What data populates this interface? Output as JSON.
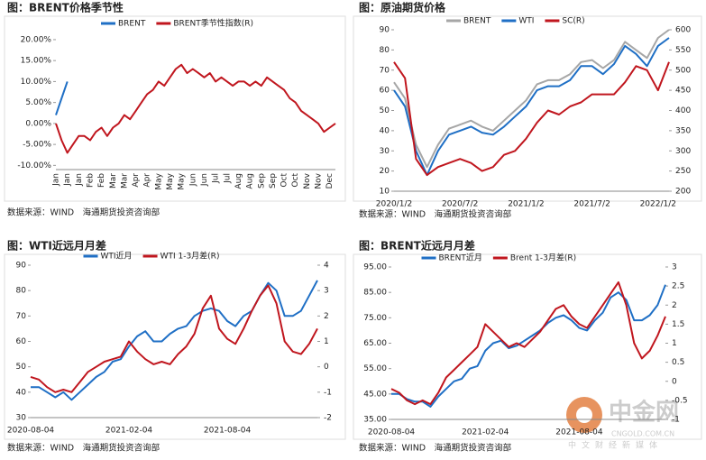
{
  "chart_data": [
    {
      "type": "line",
      "title": "图：BRENT价格季节性",
      "source": "数据来源：WIND　海通期货投资咨询部",
      "categories": [
        "Jan",
        null,
        "Jan",
        null,
        "Jan",
        null,
        "Feb",
        null,
        "Feb",
        null,
        "Mar",
        null,
        "Mar",
        null,
        "Apr",
        null,
        "Apr",
        null,
        "May",
        null,
        "May",
        null,
        "May",
        null,
        "Jun",
        null,
        "Jun",
        null,
        "Jul",
        null,
        "Jul",
        null,
        "Aug",
        null,
        "Aug",
        null,
        "Sep",
        null,
        "Sep",
        null,
        "Oct",
        null,
        "Oct",
        null,
        "Nov",
        null,
        "Nov",
        null,
        "Dec",
        null
      ],
      "series": [
        {
          "name": "BRENT",
          "color": "#1f6fc5",
          "values": [
            2,
            6,
            10,
            null,
            null,
            null,
            null,
            null,
            null,
            null,
            null,
            null,
            null,
            null,
            null,
            null,
            null,
            null,
            null,
            null,
            null,
            null,
            null,
            null,
            null,
            null,
            null,
            null,
            null,
            null,
            null,
            null,
            null,
            null,
            null,
            null,
            null,
            null,
            null,
            null,
            null,
            null,
            null,
            null,
            null,
            null,
            null,
            null,
            null,
            null
          ]
        },
        {
          "name": "BRENT季节性指数(R)",
          "color": "#c0161e",
          "values": [
            0,
            -4,
            -7,
            -5,
            -3,
            -3,
            -4,
            -2,
            -1,
            -3,
            -1,
            0,
            2,
            1,
            3,
            5,
            7,
            8,
            10,
            9,
            11,
            13,
            14,
            12,
            13,
            12,
            11,
            12,
            10,
            11,
            10,
            9,
            10,
            10,
            9,
            10,
            9,
            11,
            10,
            9,
            8,
            6,
            5,
            3,
            2,
            1,
            0,
            -2,
            -1,
            0
          ]
        }
      ],
      "ylim": [
        -11,
        23
      ],
      "yticks": [
        {
          "value": -10,
          "label": "-10.00%"
        },
        {
          "value": -5,
          "label": "-5.00%"
        },
        {
          "value": 0,
          "label": "0.00%"
        },
        {
          "value": 5,
          "label": "5.00%"
        },
        {
          "value": 10,
          "label": "10.00%"
        },
        {
          "value": 15,
          "label": "15.00%"
        },
        {
          "value": 20,
          "label": "20.00%"
        }
      ],
      "grid": false,
      "legend": "top"
    },
    {
      "type": "line",
      "title": "图：原油期货价格",
      "source": "数据来源：WIND　海通期货投资咨询部",
      "categories": [
        "2020/1/2",
        null,
        null,
        null,
        null,
        null,
        "2020/7/2",
        null,
        null,
        null,
        null,
        null,
        "2021/1/2",
        null,
        null,
        null,
        null,
        null,
        "2021/7/2",
        null,
        null,
        null,
        null,
        null,
        "2022/1/2",
        null
      ],
      "series": [
        {
          "name": "BRENT",
          "color": "#a6a6a6",
          "values": [
            64,
            56,
            33,
            22,
            33,
            41,
            43,
            45,
            42,
            40,
            45,
            50,
            55,
            63,
            65,
            65,
            68,
            74,
            75,
            71,
            75,
            84,
            80,
            76,
            86,
            90
          ]
        },
        {
          "name": "WTI",
          "color": "#1f6fc5",
          "values": [
            60,
            52,
            30,
            18,
            30,
            38,
            40,
            42,
            39,
            38,
            42,
            47,
            52,
            60,
            62,
            62,
            65,
            72,
            72,
            68,
            73,
            82,
            78,
            72,
            82,
            86
          ]
        },
        {
          "name": "SC(R)",
          "color": "#c0161e",
          "axis": "y2",
          "values": [
            520,
            480,
            280,
            240,
            260,
            270,
            280,
            270,
            250,
            260,
            290,
            300,
            330,
            370,
            400,
            390,
            410,
            420,
            440,
            440,
            440,
            470,
            510,
            500,
            450,
            520
          ]
        }
      ],
      "ylim": [
        10,
        90
      ],
      "yticks": [
        10,
        20,
        30,
        40,
        50,
        60,
        70,
        80,
        90
      ],
      "y2lim": [
        200,
        600
      ],
      "y2ticks": [
        200,
        250,
        300,
        350,
        400,
        450,
        500,
        550,
        600
      ],
      "grid": false,
      "legend": "top"
    },
    {
      "type": "line",
      "title": "图：WTI近远月月差",
      "source": "数据来源：WIND　海通期货投资咨询部",
      "categories": [
        "2020-08-04",
        null,
        null,
        null,
        null,
        null,
        null,
        null,
        null,
        null,
        null,
        null,
        "2021-02-04",
        null,
        null,
        null,
        null,
        null,
        null,
        null,
        null,
        null,
        null,
        null,
        "2021-08-04",
        null,
        null,
        null,
        null,
        null,
        null,
        null,
        null,
        null,
        null,
        null
      ],
      "series": [
        {
          "name": "WTI近月",
          "color": "#1f6fc5",
          "values": [
            42,
            42,
            40,
            38,
            40,
            37,
            40,
            43,
            46,
            48,
            52,
            53,
            58,
            62,
            64,
            60,
            60,
            63,
            65,
            66,
            70,
            72,
            73,
            72,
            68,
            66,
            70,
            72,
            78,
            83,
            80,
            70,
            70,
            72,
            78,
            84
          ]
        },
        {
          "name": "WTI 1-3月差(R)",
          "color": "#c0161e",
          "axis": "y2",
          "values": [
            -0.4,
            -0.5,
            -0.8,
            -1,
            -0.9,
            -1,
            -0.6,
            -0.2,
            0,
            0.2,
            0.3,
            0.4,
            1,
            0.6,
            0.3,
            0.1,
            0.2,
            0.1,
            0.5,
            0.8,
            1.3,
            2.3,
            2.8,
            1.5,
            1.1,
            0.9,
            1.5,
            2.2,
            2.8,
            3.2,
            2.5,
            1,
            0.6,
            0.5,
            0.9,
            1.5
          ]
        }
      ],
      "ylim": [
        30,
        90
      ],
      "yticks": [
        30,
        40,
        50,
        60,
        70,
        80,
        90
      ],
      "y2lim": [
        -2,
        4
      ],
      "y2ticks": [
        -2,
        -1,
        0,
        1,
        2,
        3,
        4
      ],
      "grid": false,
      "legend": "top"
    },
    {
      "type": "line",
      "title": "图：BRENT近远月月差",
      "source": "数据来源：WIND　海通期货投资咨询部",
      "categories": [
        "2020-08-04",
        null,
        null,
        null,
        null,
        null,
        null,
        null,
        null,
        null,
        null,
        null,
        "2021-02-04",
        null,
        null,
        null,
        null,
        null,
        null,
        null,
        null,
        null,
        null,
        null,
        "2021-08-04",
        null,
        null,
        null,
        null,
        null,
        null,
        null,
        null,
        null,
        null,
        null
      ],
      "series": [
        {
          "name": "BRENT近月",
          "color": "#1f6fc5",
          "values": [
            45,
            45,
            43,
            42,
            42,
            40,
            44,
            47,
            50,
            51,
            55,
            56,
            62,
            65,
            66,
            63,
            64,
            66,
            68,
            70,
            73,
            75,
            76,
            74,
            71,
            70,
            74,
            77,
            83,
            85,
            82,
            74,
            74,
            76,
            80,
            88
          ]
        },
        {
          "name": "Brent 1-3月差(R)",
          "color": "#c0161e",
          "axis": "y2",
          "values": [
            -0.2,
            -0.3,
            -0.5,
            -0.6,
            -0.5,
            -0.6,
            -0.3,
            0.1,
            0.3,
            0.5,
            0.7,
            0.9,
            1.5,
            1.3,
            1.1,
            0.9,
            1.0,
            0.9,
            1.1,
            1.3,
            1.6,
            1.9,
            2.0,
            1.7,
            1.5,
            1.4,
            1.7,
            2.0,
            2.3,
            2.6,
            2.0,
            1.0,
            0.6,
            0.8,
            1.2,
            1.7
          ]
        }
      ],
      "ylim": [
        35,
        95
      ],
      "yticks": [
        {
          "value": 35,
          "label": "35.00"
        },
        {
          "value": 45,
          "label": "45.00"
        },
        {
          "value": 55,
          "label": "55.00"
        },
        {
          "value": 65,
          "label": "65.00"
        },
        {
          "value": 75,
          "label": "75.00"
        },
        {
          "value": 85,
          "label": "85.00"
        },
        {
          "value": 95,
          "label": "95.00"
        }
      ],
      "y2lim": [
        -1,
        3
      ],
      "y2ticks": [
        -1,
        -0.5,
        0,
        0.5,
        1,
        1.5,
        2,
        2.5,
        3
      ],
      "grid": false,
      "legend": "top"
    }
  ],
  "watermark": {
    "name": "中金网",
    "url": "CNGOLD.COM.CN",
    "tagline": "中文财经新媒体"
  }
}
